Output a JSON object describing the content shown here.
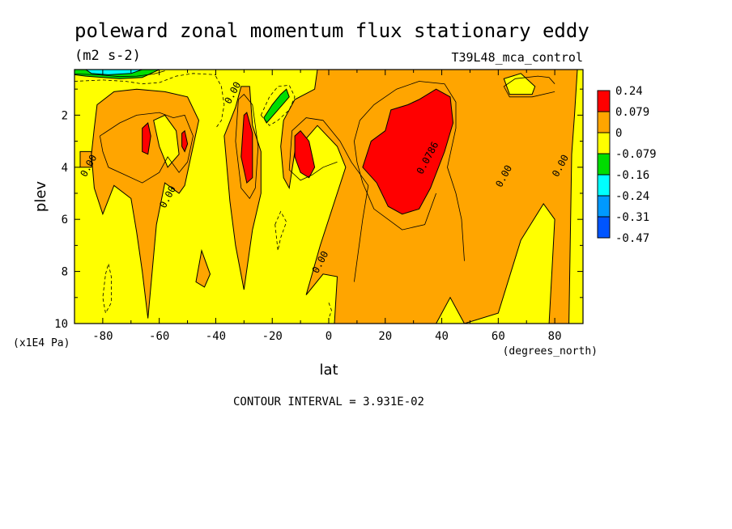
{
  "chart_data": {
    "type": "heatmap",
    "title": "poleward zonal momentum flux stationary eddy",
    "subtitle": "(m2 s-2)",
    "dataset": "T39L48_mca_control",
    "xlabel": "lat",
    "xunits": "(degrees_north)",
    "ylabel": "plev",
    "yunits": "(x1E4 Pa)",
    "xlim": [
      -90,
      90
    ],
    "ylim": [
      10,
      0.25
    ],
    "x_ticks": [
      -80,
      -60,
      -40,
      -20,
      0,
      20,
      40,
      60,
      80
    ],
    "y_ticks": [
      2,
      4,
      6,
      8,
      10
    ],
    "contour_interval_label": "CONTOUR INTERVAL = 3.931E-02",
    "contour_labels": [
      {
        "text": "0.00",
        "lat": -84,
        "plev": 4.0
      },
      {
        "text": "0.00",
        "lat": -56,
        "plev": 5.2
      },
      {
        "text": "0.00",
        "lat": -33,
        "plev": 1.2
      },
      {
        "text": "0.00",
        "lat": -2,
        "plev": 7.7
      },
      {
        "text": "0.0786",
        "lat": 36,
        "plev": 3.7
      },
      {
        "text": "0.00",
        "lat": 63,
        "plev": 4.4
      },
      {
        "text": "0.00",
        "lat": 83,
        "plev": 4.0
      }
    ],
    "colorbar": {
      "labels": [
        "0.24",
        "0.079",
        "0",
        "-0.079",
        "-0.16",
        "-0.24",
        "-0.31",
        "-0.47"
      ],
      "colors": [
        "#ff0000",
        "#ffa500",
        "#ffff00",
        "#00dd00",
        "#00ffff",
        "#0099ff",
        "#0055ff"
      ]
    },
    "regions": [
      {
        "level": "orange",
        "points": [
          [
            -88,
            3.4
          ],
          [
            -88,
            4.0
          ],
          [
            -84,
            4.0
          ],
          [
            -84,
            3.4
          ]
        ]
      },
      {
        "level": "orange",
        "points": [
          [
            -82,
            1.6
          ],
          [
            -76,
            1.1
          ],
          [
            -68,
            1.0
          ],
          [
            -58,
            1.1
          ],
          [
            -50,
            1.3
          ],
          [
            -46,
            2.2
          ],
          [
            -48,
            3.2
          ],
          [
            -51,
            4.7
          ],
          [
            -53,
            5.0
          ],
          [
            -58,
            4.6
          ],
          [
            -61,
            6.2
          ],
          [
            -64,
            9.8
          ],
          [
            -66,
            8.0
          ],
          [
            -68,
            6.5
          ],
          [
            -70,
            5.2
          ],
          [
            -76,
            4.7
          ],
          [
            -80,
            5.8
          ],
          [
            -83,
            4.8
          ],
          [
            -84,
            3.5
          ],
          [
            -83,
            2.5
          ]
        ]
      },
      {
        "level": "yellow",
        "points": [
          [
            -62,
            2.2
          ],
          [
            -60,
            3.2
          ],
          [
            -57,
            4.0
          ],
          [
            -53,
            3.5
          ],
          [
            -54,
            2.6
          ],
          [
            -58,
            2.0
          ]
        ]
      },
      {
        "level": "orange",
        "points": [
          [
            -33,
            1.7
          ],
          [
            -31,
            0.9
          ],
          [
            -28,
            0.9
          ],
          [
            -27,
            2.4
          ],
          [
            -24,
            3.4
          ],
          [
            -24,
            5.0
          ],
          [
            -27,
            6.4
          ],
          [
            -30,
            8.7
          ],
          [
            -33,
            7.0
          ],
          [
            -35,
            5.3
          ],
          [
            -37,
            2.8
          ]
        ]
      },
      {
        "level": "orange",
        "points": [
          [
            -47,
            8.4
          ],
          [
            -45,
            7.2
          ],
          [
            -42,
            8.1
          ],
          [
            -44,
            8.6
          ]
        ]
      },
      {
        "level": "orange",
        "points": [
          [
            -16,
            2.2
          ],
          [
            -12,
            1.4
          ],
          [
            -5,
            1.0
          ],
          [
            -4,
            0.25
          ],
          [
            88,
            0.25
          ],
          [
            87,
            2.0
          ],
          [
            86,
            3.5
          ],
          [
            85,
            10
          ],
          [
            78,
            10
          ],
          [
            80,
            6.0
          ],
          [
            76,
            5.4
          ],
          [
            68,
            6.8
          ],
          [
            60,
            9.6
          ],
          [
            48,
            10
          ],
          [
            43,
            9.0
          ],
          [
            38,
            10
          ],
          [
            2,
            10
          ],
          [
            3,
            8.2
          ],
          [
            -2,
            8.1
          ],
          [
            -8,
            8.9
          ],
          [
            -3,
            7.0
          ],
          [
            6,
            4.0
          ],
          [
            3,
            3.2
          ],
          [
            -4,
            2.4
          ],
          [
            -12,
            3.4
          ],
          [
            -14,
            4.8
          ],
          [
            -16,
            4.4
          ],
          [
            -17,
            3.2
          ]
        ]
      },
      {
        "level": "yellow",
        "points": [
          [
            73,
            0.9
          ],
          [
            68,
            0.4
          ],
          [
            62,
            0.6
          ],
          [
            64,
            1.2
          ],
          [
            72,
            1.2
          ]
        ]
      },
      {
        "level": "red",
        "points": [
          [
            -66,
            2.5
          ],
          [
            -64,
            2.3
          ],
          [
            -63,
            2.8
          ],
          [
            -64,
            3.5
          ],
          [
            -66,
            3.4
          ]
        ]
      },
      {
        "level": "red",
        "points": [
          [
            -52,
            2.7
          ],
          [
            -51,
            2.6
          ],
          [
            -50,
            3.1
          ],
          [
            -51,
            3.4
          ],
          [
            -52,
            3.2
          ]
        ]
      },
      {
        "level": "red",
        "points": [
          [
            -30,
            2.0
          ],
          [
            -29,
            1.9
          ],
          [
            -27,
            2.7
          ],
          [
            -27,
            4.4
          ],
          [
            -29,
            4.6
          ],
          [
            -31,
            3.6
          ]
        ]
      },
      {
        "level": "red",
        "points": [
          [
            -12,
            2.8
          ],
          [
            -10,
            2.6
          ],
          [
            -7,
            3.0
          ],
          [
            -5,
            4.0
          ],
          [
            -7,
            4.4
          ],
          [
            -10,
            4.2
          ],
          [
            -12,
            3.6
          ]
        ]
      },
      {
        "level": "red",
        "points": [
          [
            22,
            1.8
          ],
          [
            28,
            1.6
          ],
          [
            32,
            1.4
          ],
          [
            38,
            1.0
          ],
          [
            43,
            1.3
          ],
          [
            44,
            2.3
          ],
          [
            41,
            3.4
          ],
          [
            36,
            4.8
          ],
          [
            32,
            5.6
          ],
          [
            26,
            5.8
          ],
          [
            21,
            5.5
          ],
          [
            17,
            4.6
          ],
          [
            12,
            4.0
          ],
          [
            15,
            3.0
          ],
          [
            20,
            2.6
          ]
        ]
      },
      {
        "level": "green",
        "points": [
          [
            -23,
            2.1
          ],
          [
            -20,
            1.6
          ],
          [
            -17,
            1.2
          ],
          [
            -15,
            1.0
          ],
          [
            -14,
            1.3
          ],
          [
            -18,
            1.8
          ],
          [
            -22,
            2.3
          ]
        ]
      },
      {
        "level": "green",
        "points": [
          [
            -90,
            0.25
          ],
          [
            -60,
            0.25
          ],
          [
            -66,
            0.55
          ],
          [
            -74,
            0.6
          ],
          [
            -80,
            0.55
          ],
          [
            -86,
            0.5
          ],
          [
            -90,
            0.45
          ]
        ]
      },
      {
        "level": "cyan",
        "points": [
          [
            -86,
            0.25
          ],
          [
            -66,
            0.25
          ],
          [
            -70,
            0.4
          ],
          [
            -78,
            0.45
          ],
          [
            -84,
            0.4
          ]
        ]
      }
    ],
    "lines": [
      {
        "style": "solid",
        "points": [
          [
            -81,
            2.8
          ],
          [
            -74,
            2.3
          ],
          [
            -68,
            2.0
          ],
          [
            -60,
            1.9
          ],
          [
            -55,
            2.1
          ],
          [
            -51,
            2.0
          ],
          [
            -48,
            2.8
          ],
          [
            -50,
            3.8
          ],
          [
            -53,
            4.2
          ],
          [
            -57,
            3.6
          ],
          [
            -60,
            4.2
          ],
          [
            -66,
            4.6
          ],
          [
            -72,
            4.3
          ],
          [
            -78,
            4.0
          ],
          [
            -80,
            3.4
          ],
          [
            -81,
            2.8
          ]
        ]
      },
      {
        "style": "solid",
        "points": [
          [
            -32,
            1.4
          ],
          [
            -30,
            1.2
          ],
          [
            -27,
            1.6
          ],
          [
            -25,
            3.2
          ],
          [
            -26,
            4.8
          ],
          [
            -28,
            5.2
          ],
          [
            -31,
            4.8
          ],
          [
            -33,
            3.0
          ],
          [
            -32,
            1.4
          ]
        ]
      },
      {
        "style": "solid",
        "points": [
          [
            9,
            8.4
          ],
          [
            12,
            6.0
          ],
          [
            14,
            4.7
          ],
          [
            8,
            3.8
          ],
          [
            4,
            3.0
          ],
          [
            -2,
            2.2
          ],
          [
            -8,
            2.1
          ],
          [
            -13,
            2.6
          ],
          [
            -14,
            4.1
          ],
          [
            -10,
            4.5
          ],
          [
            -6,
            4.3
          ],
          [
            -2,
            4.0
          ],
          [
            3,
            3.8
          ]
        ]
      },
      {
        "style": "solid",
        "points": [
          [
            48,
            7.6
          ],
          [
            47,
            6.0
          ],
          [
            45,
            5.0
          ],
          [
            42,
            4.0
          ],
          [
            45,
            2.5
          ],
          [
            45,
            1.5
          ],
          [
            41,
            0.8
          ],
          [
            32,
            0.7
          ],
          [
            24,
            1.0
          ],
          [
            16,
            1.6
          ],
          [
            11,
            2.2
          ],
          [
            9,
            3.0
          ],
          [
            10,
            3.8
          ],
          [
            12,
            4.6
          ],
          [
            16,
            5.6
          ],
          [
            26,
            6.4
          ],
          [
            34,
            6.2
          ],
          [
            38,
            5.0
          ]
        ]
      },
      {
        "style": "solid",
        "points": [
          [
            80,
            0.8
          ],
          [
            78,
            0.55
          ],
          [
            74,
            0.5
          ],
          [
            66,
            0.6
          ],
          [
            62,
            0.9
          ],
          [
            64,
            1.3
          ],
          [
            72,
            1.3
          ],
          [
            80,
            1.1
          ]
        ]
      },
      {
        "style": "solid",
        "points": [
          [
            -90,
            0.42
          ],
          [
            -82,
            0.45
          ],
          [
            -74,
            0.52
          ],
          [
            -68,
            0.5
          ],
          [
            -62,
            0.42
          ],
          [
            -58,
            0.3
          ]
        ]
      },
      {
        "style": "dashed",
        "points": [
          [
            -90,
            0.7
          ],
          [
            -80,
            0.65
          ],
          [
            -72,
            0.7
          ],
          [
            -66,
            0.8
          ],
          [
            -60,
            0.75
          ],
          [
            -54,
            0.5
          ],
          [
            -48,
            0.4
          ],
          [
            -40,
            0.45
          ]
        ]
      },
      {
        "style": "dashed",
        "points": [
          [
            -40,
            0.5
          ],
          [
            -38,
            0.9
          ],
          [
            -37,
            1.6
          ],
          [
            -38,
            2.2
          ],
          [
            -40,
            2.5
          ]
        ]
      },
      {
        "style": "dashed",
        "points": [
          [
            -24,
            2.0
          ],
          [
            -21,
            1.3
          ],
          [
            -18,
            0.9
          ],
          [
            -14,
            0.85
          ],
          [
            -12,
            1.3
          ],
          [
            -14,
            1.8
          ],
          [
            -18,
            2.2
          ],
          [
            -21,
            2.4
          ],
          [
            -24,
            2.0
          ]
        ]
      },
      {
        "style": "dashed",
        "points": [
          [
            -19,
            6.2
          ],
          [
            -17,
            5.7
          ],
          [
            -15,
            6.1
          ],
          [
            -17,
            6.7
          ],
          [
            -18,
            7.2
          ],
          [
            -19,
            6.2
          ]
        ]
      },
      {
        "style": "dashed",
        "points": [
          [
            -79,
            8.1
          ],
          [
            -78,
            7.7
          ],
          [
            -77,
            8.2
          ],
          [
            -77,
            9.2
          ],
          [
            -79,
            9.6
          ],
          [
            -80,
            9.0
          ],
          [
            -79,
            8.1
          ]
        ]
      },
      {
        "style": "dashed",
        "points": [
          [
            0,
            9.2
          ],
          [
            1,
            9.5
          ],
          [
            0,
            9.8
          ]
        ]
      }
    ]
  }
}
